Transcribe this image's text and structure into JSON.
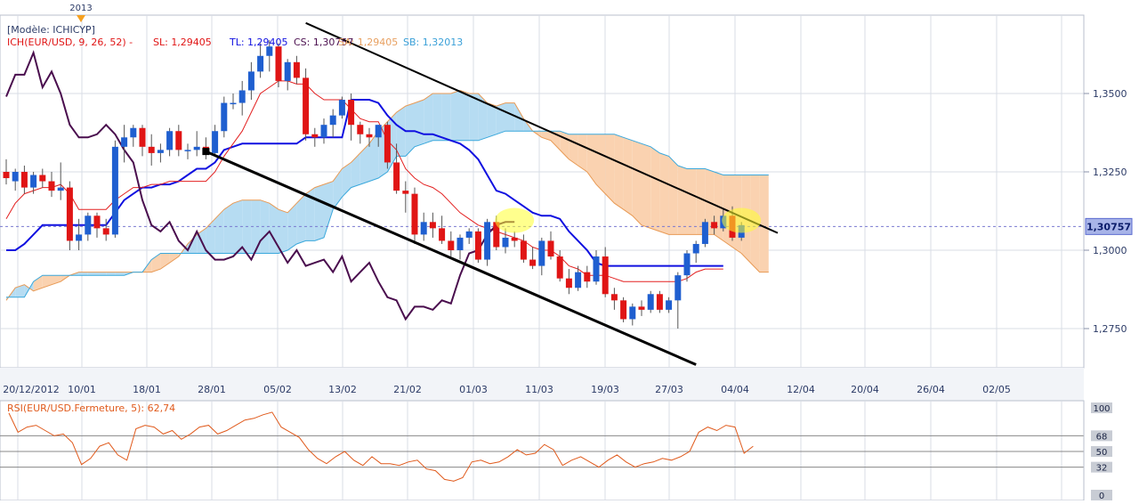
{
  "chart_data": [
    {
      "type": "candlestick",
      "year_marker": "2013",
      "legend": {
        "model": "[Modèle: ICHICYP]",
        "ich": "ICH(EUR/USD, 9, 26, 52) -",
        "sl": "SL: 1,29405",
        "tl": "TL: 1,29405",
        "cs": "CS: 1,30757",
        "sa": "SA: 1,29405",
        "sb": "SB: 1,32013"
      },
      "last_price_label": "1,30757",
      "last_price": 1.30757,
      "ylim": [
        1.2625,
        1.375
      ],
      "yticks": [
        {
          "v": 1.35,
          "label": "1,3500"
        },
        {
          "v": 1.325,
          "label": "1,3250"
        },
        {
          "v": 1.3,
          "label": "1,3000"
        },
        {
          "v": 1.275,
          "label": "1,2750"
        }
      ],
      "xticks": [
        "20/12/2012",
        "10/01",
        "18/01",
        "28/01",
        "05/02",
        "13/02",
        "21/02",
        "01/03",
        "11/03",
        "19/03",
        "27/03",
        "04/04",
        "12/04",
        "20/04",
        "26/04",
        "02/05"
      ],
      "candles": [
        [
          1.325,
          1.329,
          1.321,
          1.323
        ],
        [
          1.322,
          1.326,
          1.319,
          1.325
        ],
        [
          1.325,
          1.327,
          1.318,
          1.32
        ],
        [
          1.32,
          1.325,
          1.318,
          1.324
        ],
        [
          1.324,
          1.326,
          1.32,
          1.322
        ],
        [
          1.322,
          1.325,
          1.317,
          1.319
        ],
        [
          1.319,
          1.328,
          1.316,
          1.32
        ],
        [
          1.32,
          1.322,
          1.3,
          1.303
        ],
        [
          1.303,
          1.31,
          1.3,
          1.305
        ],
        [
          1.305,
          1.312,
          1.303,
          1.311
        ],
        [
          1.311,
          1.312,
          1.304,
          1.307
        ],
        [
          1.307,
          1.31,
          1.303,
          1.305
        ],
        [
          1.305,
          1.335,
          1.304,
          1.333
        ],
        [
          1.333,
          1.34,
          1.328,
          1.336
        ],
        [
          1.336,
          1.34,
          1.333,
          1.339
        ],
        [
          1.339,
          1.34,
          1.33,
          1.333
        ],
        [
          1.333,
          1.337,
          1.327,
          1.331
        ],
        [
          1.331,
          1.334,
          1.328,
          1.332
        ],
        [
          1.332,
          1.339,
          1.33,
          1.338
        ],
        [
          1.338,
          1.34,
          1.33,
          1.332
        ],
        [
          1.332,
          1.334,
          1.329,
          1.332
        ],
        [
          1.332,
          1.338,
          1.33,
          1.333
        ],
        [
          1.333,
          1.336,
          1.329,
          1.331
        ],
        [
          1.331,
          1.34,
          1.33,
          1.338
        ],
        [
          1.338,
          1.349,
          1.336,
          1.347
        ],
        [
          1.347,
          1.35,
          1.345,
          1.347
        ],
        [
          1.347,
          1.354,
          1.343,
          1.351
        ],
        [
          1.351,
          1.36,
          1.348,
          1.357
        ],
        [
          1.357,
          1.366,
          1.355,
          1.362
        ],
        [
          1.362,
          1.367,
          1.357,
          1.365
        ],
        [
          1.365,
          1.366,
          1.352,
          1.354
        ],
        [
          1.354,
          1.361,
          1.351,
          1.36
        ],
        [
          1.36,
          1.362,
          1.353,
          1.355
        ],
        [
          1.355,
          1.358,
          1.335,
          1.337
        ],
        [
          1.337,
          1.339,
          1.333,
          1.336
        ],
        [
          1.336,
          1.342,
          1.334,
          1.34
        ],
        [
          1.34,
          1.345,
          1.336,
          1.343
        ],
        [
          1.343,
          1.349,
          1.342,
          1.348
        ],
        [
          1.348,
          1.35,
          1.335,
          1.34
        ],
        [
          1.34,
          1.341,
          1.334,
          1.337
        ],
        [
          1.337,
          1.339,
          1.333,
          1.336
        ],
        [
          1.336,
          1.34,
          1.333,
          1.34
        ],
        [
          1.34,
          1.341,
          1.326,
          1.328
        ],
        [
          1.328,
          1.334,
          1.318,
          1.319
        ],
        [
          1.319,
          1.322,
          1.312,
          1.318
        ],
        [
          1.318,
          1.32,
          1.302,
          1.305
        ],
        [
          1.305,
          1.312,
          1.303,
          1.309
        ],
        [
          1.309,
          1.312,
          1.304,
          1.307
        ],
        [
          1.307,
          1.311,
          1.302,
          1.303
        ],
        [
          1.303,
          1.306,
          1.298,
          1.3
        ],
        [
          1.3,
          1.305,
          1.297,
          1.304
        ],
        [
          1.304,
          1.307,
          1.302,
          1.306
        ],
        [
          1.306,
          1.307,
          1.296,
          1.297
        ],
        [
          1.297,
          1.31,
          1.295,
          1.309
        ],
        [
          1.309,
          1.311,
          1.3,
          1.301
        ],
        [
          1.301,
          1.307,
          1.299,
          1.304
        ],
        [
          1.304,
          1.306,
          1.301,
          1.303
        ],
        [
          1.303,
          1.305,
          1.296,
          1.297
        ],
        [
          1.297,
          1.301,
          1.294,
          1.295
        ],
        [
          1.295,
          1.304,
          1.292,
          1.303
        ],
        [
          1.303,
          1.306,
          1.297,
          1.298
        ],
        [
          1.298,
          1.3,
          1.29,
          1.291
        ],
        [
          1.291,
          1.294,
          1.286,
          1.288
        ],
        [
          1.288,
          1.295,
          1.287,
          1.293
        ],
        [
          1.293,
          1.295,
          1.288,
          1.29
        ],
        [
          1.29,
          1.3,
          1.289,
          1.298
        ],
        [
          1.298,
          1.301,
          1.285,
          1.286
        ],
        [
          1.286,
          1.288,
          1.281,
          1.284
        ],
        [
          1.284,
          1.285,
          1.277,
          1.278
        ],
        [
          1.278,
          1.283,
          1.276,
          1.282
        ],
        [
          1.282,
          1.284,
          1.279,
          1.281
        ],
        [
          1.281,
          1.287,
          1.28,
          1.286
        ],
        [
          1.286,
          1.287,
          1.28,
          1.281
        ],
        [
          1.281,
          1.285,
          1.28,
          1.284
        ],
        [
          1.284,
          1.293,
          1.275,
          1.292
        ],
        [
          1.292,
          1.3,
          1.29,
          1.299
        ],
        [
          1.299,
          1.303,
          1.296,
          1.302
        ],
        [
          1.302,
          1.31,
          1.301,
          1.309
        ],
        [
          1.309,
          1.311,
          1.305,
          1.307
        ],
        [
          1.307,
          1.313,
          1.306,
          1.311
        ],
        [
          1.311,
          1.314,
          1.303,
          1.304
        ],
        [
          1.304,
          1.309,
          1.303,
          1.308
        ]
      ],
      "tenkan": [
        1.31,
        1.315,
        1.318,
        1.319,
        1.32,
        1.32,
        1.321,
        1.318,
        1.313,
        1.313,
        1.313,
        1.313,
        1.316,
        1.318,
        1.32,
        1.32,
        1.321,
        1.321,
        1.322,
        1.322,
        1.322,
        1.322,
        1.322,
        1.325,
        1.33,
        1.334,
        1.338,
        1.344,
        1.35,
        1.352,
        1.354,
        1.354,
        1.353,
        1.353,
        1.35,
        1.348,
        1.348,
        1.348,
        1.345,
        1.342,
        1.341,
        1.341,
        1.335,
        1.332,
        1.326,
        1.323,
        1.321,
        1.32,
        1.318,
        1.315,
        1.312,
        1.31,
        1.308,
        1.307,
        1.306,
        1.305,
        1.304,
        1.303,
        1.301,
        1.3,
        1.3,
        1.298,
        1.295,
        1.294,
        1.292,
        1.292,
        1.292,
        1.291,
        1.29,
        1.29,
        1.29,
        1.29,
        1.29,
        1.29,
        1.29,
        1.291,
        1.293,
        1.294,
        1.294,
        1.294
      ],
      "kijun": [
        1.3,
        1.3,
        1.302,
        1.305,
        1.308,
        1.308,
        1.308,
        1.308,
        1.308,
        1.308,
        1.308,
        1.308,
        1.312,
        1.316,
        1.318,
        1.32,
        1.32,
        1.321,
        1.321,
        1.322,
        1.324,
        1.326,
        1.326,
        1.328,
        1.332,
        1.333,
        1.334,
        1.334,
        1.334,
        1.334,
        1.334,
        1.334,
        1.334,
        1.336,
        1.336,
        1.336,
        1.336,
        1.336,
        1.348,
        1.348,
        1.348,
        1.347,
        1.343,
        1.34,
        1.338,
        1.338,
        1.337,
        1.337,
        1.336,
        1.335,
        1.334,
        1.332,
        1.329,
        1.324,
        1.319,
        1.318,
        1.316,
        1.314,
        1.312,
        1.311,
        1.311,
        1.31,
        1.306,
        1.303,
        1.3,
        1.296,
        1.295,
        1.295,
        1.295,
        1.295,
        1.295,
        1.295,
        1.295,
        1.295,
        1.295,
        1.295,
        1.295,
        1.295,
        1.295,
        1.295
      ],
      "chikou": [
        1.349,
        1.356,
        1.356,
        1.363,
        1.352,
        1.357,
        1.35,
        1.34,
        1.336,
        1.336,
        1.337,
        1.34,
        1.337,
        1.332,
        1.328,
        1.316,
        1.308,
        1.306,
        1.309,
        1.303,
        1.3,
        1.306,
        1.3,
        1.297,
        1.297,
        1.298,
        1.301,
        1.297,
        1.303,
        1.306,
        1.301,
        1.296,
        1.3,
        1.295,
        1.296,
        1.297,
        1.293,
        1.298,
        1.29,
        1.293,
        1.296,
        1.29,
        1.285,
        1.284,
        1.278,
        1.282,
        1.282,
        1.281,
        1.284,
        1.283,
        1.292,
        1.299,
        1.3,
        1.305,
        1.308,
        1.309,
        1.309
      ],
      "cloud_a": [
        1.284,
        1.288,
        1.289,
        1.287,
        1.288,
        1.289,
        1.29,
        1.292,
        1.293,
        1.293,
        1.293,
        1.293,
        1.293,
        1.293,
        1.293,
        1.293,
        1.293,
        1.294,
        1.296,
        1.298,
        1.302,
        1.305,
        1.307,
        1.31,
        1.313,
        1.315,
        1.316,
        1.316,
        1.316,
        1.315,
        1.313,
        1.312,
        1.315,
        1.318,
        1.32,
        1.321,
        1.322,
        1.326,
        1.328,
        1.331,
        1.334,
        1.338,
        1.341,
        1.344,
        1.346,
        1.347,
        1.348,
        1.35,
        1.35,
        1.35,
        1.351,
        1.35,
        1.35,
        1.347,
        1.346,
        1.347,
        1.347,
        1.342,
        1.338,
        1.336,
        1.335,
        1.332,
        1.329,
        1.327,
        1.325,
        1.321,
        1.318,
        1.315,
        1.313,
        1.311,
        1.308,
        1.307,
        1.306,
        1.305,
        1.305,
        1.305,
        1.305,
        1.305,
        1.305,
        1.303,
        1.301,
        1.299,
        1.296,
        1.293,
        1.293
      ],
      "cloud_b": [
        1.285,
        1.285,
        1.285,
        1.29,
        1.292,
        1.292,
        1.292,
        1.292,
        1.292,
        1.292,
        1.292,
        1.292,
        1.292,
        1.292,
        1.293,
        1.293,
        1.297,
        1.299,
        1.299,
        1.299,
        1.299,
        1.299,
        1.299,
        1.299,
        1.299,
        1.299,
        1.299,
        1.299,
        1.299,
        1.299,
        1.299,
        1.3,
        1.302,
        1.303,
        1.303,
        1.304,
        1.313,
        1.317,
        1.32,
        1.321,
        1.322,
        1.323,
        1.325,
        1.33,
        1.33,
        1.333,
        1.334,
        1.335,
        1.335,
        1.335,
        1.335,
        1.335,
        1.335,
        1.336,
        1.337,
        1.338,
        1.338,
        1.338,
        1.338,
        1.338,
        1.338,
        1.338,
        1.337,
        1.337,
        1.337,
        1.337,
        1.337,
        1.337,
        1.336,
        1.335,
        1.334,
        1.333,
        1.331,
        1.33,
        1.327,
        1.326,
        1.326,
        1.326,
        1.325,
        1.324,
        1.324,
        1.324,
        1.324,
        1.324,
        1.324
      ],
      "trendlines": [
        {
          "x1": "2013-01-21",
          "y1": 1.3315,
          "x2": "2013-04-05",
          "y2": 1.2635,
          "color": "#000000",
          "width": 3
        },
        {
          "x1": "2013-02-05",
          "y1": 1.3725,
          "x2": "2013-04-18",
          "y2": 1.3055,
          "color": "#000000",
          "width": 2
        }
      ],
      "highlights": [
        {
          "x": "2013-03-09",
          "y": 1.3095
        },
        {
          "x": "2013-04-14",
          "y": 1.3095
        }
      ],
      "colors": {
        "bull": "#1f5fd0",
        "bear": "#e01515",
        "tenkan": "#e32020",
        "kijun": "#1010e0",
        "chikou": "#4a0e4e",
        "cloud_bull": "#b6dcf2",
        "cloud_bear": "#fad2b0",
        "grid": "#d8dde6",
        "price_line": "#7a7ad0"
      }
    },
    {
      "type": "line",
      "legend": "RSI(EUR/USD.Fermeture, 5): 62,74",
      "ylim": [
        0,
        100
      ],
      "levels": [
        {
          "v": 100,
          "label": "100"
        },
        {
          "v": 68,
          "label": "68"
        },
        {
          "v": 50,
          "label": "50"
        },
        {
          "v": 32,
          "label": "32"
        },
        {
          "v": 0,
          "label": "0"
        }
      ],
      "rsi": [
        94,
        72,
        78,
        80,
        74,
        68,
        70,
        60,
        35,
        42,
        56,
        60,
        46,
        40,
        76,
        80,
        78,
        70,
        74,
        64,
        70,
        78,
        80,
        70,
        74,
        80,
        86,
        88,
        92,
        95,
        78,
        72,
        66,
        52,
        42,
        36,
        44,
        50,
        40,
        34,
        44,
        36,
        36,
        34,
        38,
        40,
        30,
        28,
        18,
        16,
        20,
        38,
        40,
        36,
        38,
        44,
        52,
        46,
        48,
        58,
        52,
        34,
        40,
        44,
        38,
        32,
        40,
        46,
        38,
        32,
        36,
        38,
        42,
        40,
        44,
        50,
        72,
        78,
        74,
        80,
        78,
        48,
        56
      ],
      "colors": {
        "line": "#e05a1c",
        "levels": "#888888"
      }
    }
  ]
}
